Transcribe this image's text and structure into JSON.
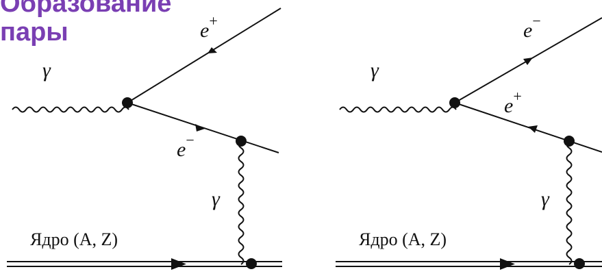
{
  "title": {
    "line1": "Образование",
    "line2": "пары"
  },
  "diagram_left": {
    "photon_label": "γ",
    "positron_label": "e",
    "positron_sup": "+",
    "electron_label": "e",
    "electron_sup": "−",
    "virtual_photon_label": "γ",
    "nucleus_label": "Ядро (A, Z)"
  },
  "diagram_right": {
    "photon_label": "γ",
    "electron_label": "e",
    "electron_sup": "−",
    "positron_label": "e",
    "positron_sup": "+",
    "virtual_photon_label": "γ",
    "nucleus_label": "Ядро (A, Z)"
  },
  "colors": {
    "title": "#7a3fb3",
    "ink": "#111111",
    "background": "#ffffff"
  }
}
